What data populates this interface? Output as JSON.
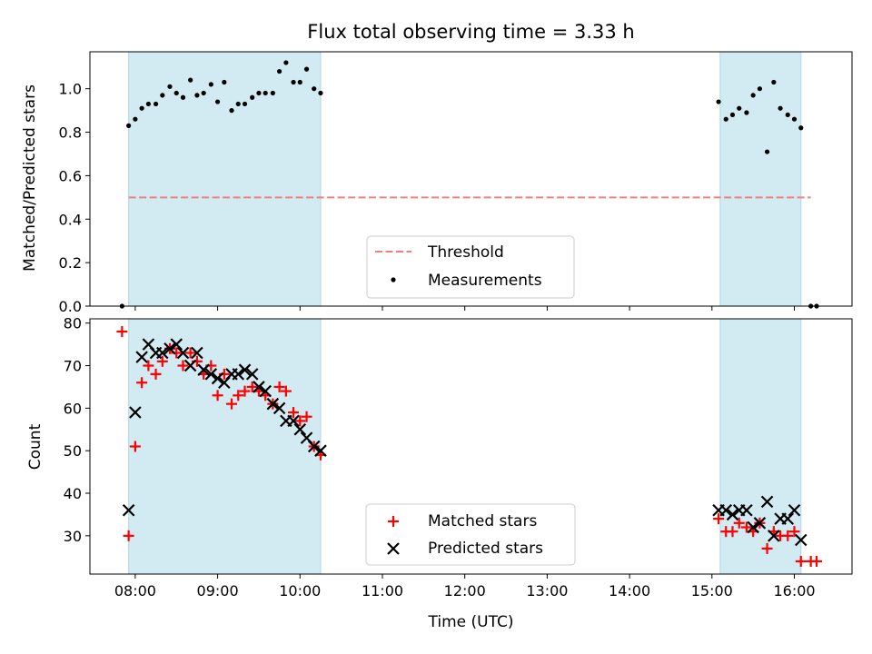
{
  "chart_data": [
    {
      "type": "scatter",
      "title": "Flux total observing time = 3.33 h",
      "xlabel": "",
      "ylabel": "Matched/Predicted stars",
      "xlim": [
        7.45,
        16.7
      ],
      "ylim": [
        0.0,
        1.17
      ],
      "yticks": [
        0.0,
        0.2,
        0.4,
        0.6,
        0.8,
        1.0
      ],
      "ytick_labels": [
        "0.0",
        "0.2",
        "0.4",
        "0.6",
        "0.8",
        "1.0"
      ],
      "shaded_intervals": [
        [
          7.92,
          10.25
        ],
        [
          15.1,
          16.08
        ]
      ],
      "legend_position": "bottom-center",
      "threshold": {
        "name": "Threshold",
        "x": [
          7.92,
          16.2
        ],
        "y": 0.5,
        "color": "#f08080"
      },
      "series": [
        {
          "name": "Measurements",
          "marker": "dot",
          "color": "#000000",
          "x": [
            7.84,
            7.92,
            8.0,
            8.08,
            8.16,
            8.25,
            8.33,
            8.42,
            8.5,
            8.58,
            8.67,
            8.75,
            8.83,
            8.92,
            9.0,
            9.08,
            9.17,
            9.25,
            9.33,
            9.42,
            9.5,
            9.58,
            9.67,
            9.75,
            9.83,
            9.92,
            10.0,
            10.08,
            10.17,
            10.25,
            15.08,
            15.17,
            15.25,
            15.33,
            15.42,
            15.5,
            15.58,
            15.67,
            15.75,
            15.83,
            15.92,
            16.0,
            16.08,
            16.2,
            16.27
          ],
          "y": [
            0.0,
            0.83,
            0.86,
            0.91,
            0.93,
            0.93,
            0.97,
            1.01,
            0.98,
            0.96,
            1.04,
            0.97,
            0.98,
            1.02,
            0.94,
            1.03,
            0.9,
            0.93,
            0.93,
            0.96,
            0.98,
            0.98,
            0.98,
            1.08,
            1.12,
            1.03,
            1.03,
            1.09,
            1.0,
            0.98,
            0.94,
            0.86,
            0.88,
            0.91,
            0.89,
            0.97,
            1.0,
            0.71,
            1.03,
            0.91,
            0.88,
            0.86,
            0.82,
            0.0,
            0.0
          ]
        }
      ]
    },
    {
      "type": "scatter",
      "title": "",
      "xlabel": "Time (UTC)",
      "ylabel": "Count",
      "xlim": [
        7.45,
        16.7
      ],
      "ylim": [
        21,
        81
      ],
      "yticks": [
        30,
        40,
        50,
        60,
        70,
        80
      ],
      "ytick_labels": [
        "30",
        "40",
        "50",
        "60",
        "70",
        "80"
      ],
      "xticks": [
        8,
        9,
        10,
        11,
        12,
        13,
        14,
        15,
        16
      ],
      "xtick_labels": [
        "08:00",
        "09:00",
        "10:00",
        "11:00",
        "12:00",
        "13:00",
        "14:00",
        "15:00",
        "16:00"
      ],
      "shaded_intervals": [
        [
          7.92,
          10.25
        ],
        [
          15.1,
          16.08
        ]
      ],
      "legend_position": "bottom-center",
      "series": [
        {
          "name": "Matched stars",
          "marker": "plus",
          "color": "#ff0000",
          "x": [
            7.84,
            7.92,
            8.0,
            8.08,
            8.16,
            8.25,
            8.33,
            8.42,
            8.5,
            8.58,
            8.67,
            8.75,
            8.83,
            8.92,
            9.0,
            9.08,
            9.17,
            9.25,
            9.33,
            9.42,
            9.5,
            9.58,
            9.67,
            9.75,
            9.83,
            9.92,
            10.0,
            10.08,
            10.17,
            10.25,
            15.08,
            15.17,
            15.25,
            15.33,
            15.42,
            15.5,
            15.58,
            15.67,
            15.75,
            15.83,
            15.92,
            16.0,
            16.08,
            16.2,
            16.27
          ],
          "y": [
            78,
            30,
            51,
            66,
            70,
            68,
            71,
            74,
            73,
            70,
            73,
            71,
            68,
            70,
            63,
            68,
            61,
            63,
            64,
            65,
            64,
            63,
            61,
            65,
            64,
            59,
            57,
            58,
            51,
            49,
            34,
            31,
            31,
            33,
            32,
            31,
            33,
            27,
            31,
            30,
            30,
            31,
            24,
            24,
            24
          ]
        },
        {
          "name": "Predicted stars",
          "marker": "x",
          "color": "#000000",
          "x": [
            7.92,
            8.0,
            8.08,
            8.16,
            8.25,
            8.33,
            8.42,
            8.5,
            8.58,
            8.67,
            8.75,
            8.83,
            8.92,
            9.0,
            9.08,
            9.17,
            9.25,
            9.33,
            9.42,
            9.5,
            9.58,
            9.67,
            9.75,
            9.83,
            9.92,
            10.0,
            10.08,
            10.17,
            10.25,
            15.08,
            15.17,
            15.25,
            15.33,
            15.42,
            15.5,
            15.58,
            15.67,
            15.75,
            15.83,
            15.92,
            16.0,
            16.08
          ],
          "y": [
            36,
            59,
            72,
            75,
            73,
            73,
            74,
            75,
            73,
            70,
            73,
            69,
            68,
            67,
            66,
            68,
            68,
            69,
            68,
            65,
            64,
            61,
            60,
            57,
            57,
            55,
            53,
            51,
            50,
            36,
            36,
            35,
            36,
            36,
            32,
            33,
            38,
            30,
            34,
            34,
            36,
            29
          ]
        }
      ]
    }
  ],
  "colors": {
    "shade": "#add8e6",
    "threshold": "#f08080",
    "matched": "#ff0000",
    "predicted": "#000000"
  }
}
